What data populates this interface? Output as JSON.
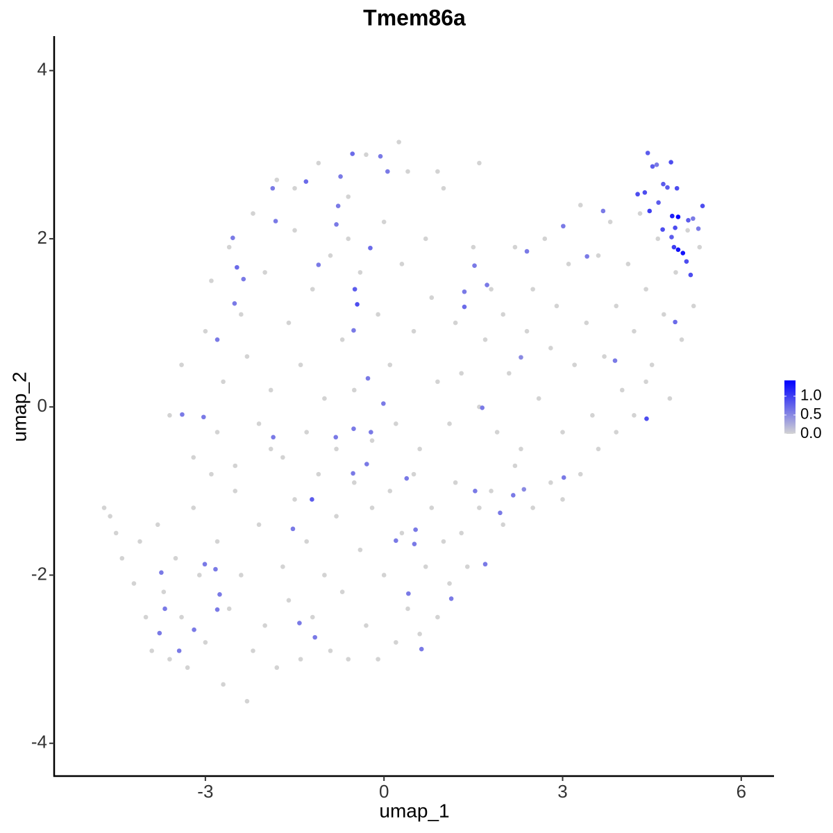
{
  "chart_data": {
    "type": "scatter",
    "title": "Tmem86a",
    "x_label": "umap_1",
    "y_label": "umap_2",
    "xlim": [
      -5.54,
      6.55
    ],
    "ylim": [
      -4.39,
      4.41
    ],
    "xticks": [
      -3,
      0,
      3,
      6
    ],
    "yticks": [
      -4,
      -2,
      0,
      2,
      4
    ],
    "x": [
      -4.7,
      -4.6,
      -4.5,
      -4.4,
      -4.2,
      -4.1,
      -4.0,
      -3.9,
      -3.8,
      -3.7,
      -3.6,
      -3.5,
      -3.4,
      -3.3,
      -3.2,
      -3.1,
      -3.0,
      -2.9,
      -2.8,
      -2.7,
      -2.6,
      -2.5,
      -2.4,
      -2.3,
      -2.2,
      -2.1,
      -2.0,
      -1.9,
      -1.8,
      -1.7,
      -1.6,
      -1.5,
      -1.4,
      -1.3,
      -1.2,
      -1.1,
      -1.0,
      -0.9,
      -0.8,
      -0.7,
      -0.6,
      -0.5,
      -0.4,
      -0.3,
      -0.2,
      -0.1,
      0.0,
      0.1,
      0.2,
      0.3,
      0.4,
      0.5,
      0.6,
      0.7,
      0.8,
      0.9,
      1.0,
      1.1,
      1.2,
      1.3,
      1.4,
      1.6,
      1.8,
      2.0,
      2.2,
      2.5,
      2.8,
      3.0,
      3.3,
      3.6,
      3.9,
      4.2,
      4.4,
      -3.6,
      -3.4,
      -3.2,
      -3.0,
      -2.9,
      -2.8,
      -2.7,
      -2.6,
      -2.5,
      -2.4,
      -2.3,
      -2.2,
      -2.1,
      -2.0,
      -1.9,
      -1.8,
      -1.7,
      -1.6,
      -1.5,
      -1.4,
      -1.3,
      -1.2,
      -1.1,
      -1.0,
      -0.9,
      -0.8,
      -0.7,
      -0.6,
      -0.5,
      -0.4,
      -0.3,
      -0.2,
      -0.1,
      0.0,
      0.1,
      0.2,
      0.3,
      0.4,
      0.5,
      0.6,
      0.7,
      0.8,
      0.9,
      1.0,
      1.1,
      1.2,
      1.3,
      1.5,
      1.6,
      1.7,
      1.8,
      1.9,
      2.0,
      2.1,
      2.2,
      2.3,
      2.4,
      2.5,
      2.6,
      2.7,
      2.8,
      2.9,
      3.0,
      3.1,
      3.2,
      3.3,
      3.4,
      3.5,
      3.6,
      3.7,
      3.8,
      3.9,
      4.0,
      4.1,
      4.2,
      4.3,
      4.4,
      4.5,
      4.6,
      4.7,
      4.8,
      4.9,
      5.0,
      5.1,
      5.2,
      5.3,
      0.25,
      -0.6,
      -1.5,
      1.6,
      0.9,
      -0.53,
      -0.06,
      0.06,
      -0.73,
      -1.31,
      -1.87,
      -1.82,
      -0.77,
      -0.8,
      -2.54,
      -2.47,
      -2.36,
      -1.1,
      -0.23,
      -0.49,
      -0.45,
      -0.51,
      -2.51,
      -2.8,
      -0.27,
      -0.01,
      -3.39,
      -3.03,
      -1.86,
      -0.51,
      -0.22,
      -0.81,
      -0.29,
      -0.52,
      0.38,
      -1.21,
      -1.53,
      0.2,
      0.53,
      0.51,
      -3.01,
      -2.83,
      -3.74,
      -3.68,
      -2.76,
      -2.8,
      -3.19,
      -3.77,
      -3.44,
      -1.42,
      -1.16,
      0.41,
      1.13,
      0.63,
      1.53,
      2.17,
      2.35,
      1.95,
      1.7,
      3.02,
      1.65,
      1.35,
      1.35,
      1.52,
      1.73,
      2.3,
      2.4,
      3.01,
      3.41,
      3.68,
      3.88,
      4.41,
      4.26,
      4.38,
      4.43,
      4.51,
      4.58,
      4.82,
      4.69,
      4.76,
      4.92,
      4.61,
      4.46,
      4.84,
      4.89,
      4.94,
      5.11,
      5.19,
      5.35,
      5.28,
      4.68,
      4.83,
      4.87,
      4.94,
      5.02,
      5.08,
      5.15,
      4.89
    ],
    "values": [
      -1.2,
      -1.3,
      -1.5,
      -1.8,
      -2.1,
      -1.6,
      -2.5,
      -2.9,
      -1.4,
      -2.2,
      -3.0,
      -1.8,
      -2.5,
      -3.1,
      -1.2,
      -2.0,
      -2.8,
      -0.8,
      -1.6,
      -3.3,
      -2.4,
      -1.0,
      -2.0,
      -3.5,
      -2.9,
      -1.4,
      -2.6,
      -0.5,
      -3.1,
      -1.9,
      -2.3,
      -1.1,
      -3.0,
      -1.6,
      -2.5,
      -0.8,
      -2.0,
      -2.9,
      -1.3,
      -2.2,
      -3.0,
      -0.9,
      -1.7,
      -2.6,
      -1.2,
      -3.0,
      -2.0,
      -1.0,
      -2.8,
      -1.5,
      -2.4,
      -0.8,
      -2.7,
      -1.9,
      -1.2,
      -2.5,
      -1.6,
      -2.1,
      -0.9,
      -1.5,
      -1.9,
      -1.2,
      -1.0,
      -1.4,
      -0.7,
      -1.2,
      -0.9,
      -1.1,
      -0.8,
      -0.5,
      -0.3,
      -0.1,
      0.3,
      -0.1,
      0.5,
      -0.6,
      0.9,
      1.5,
      -0.3,
      0.3,
      1.9,
      -0.7,
      1.1,
      0.6,
      2.3,
      -0.2,
      1.6,
      0.2,
      2.7,
      -0.6,
      1.0,
      2.1,
      0.5,
      -0.3,
      1.4,
      2.9,
      0.1,
      1.8,
      -0.5,
      0.8,
      2.5,
      0.2,
      1.6,
      3.0,
      -0.4,
      1.1,
      2.2,
      0.5,
      -0.2,
      1.7,
      2.8,
      0.9,
      -0.5,
      2.0,
      1.3,
      0.3,
      2.6,
      -0.2,
      1.0,
      0.4,
      1.9,
      0.0,
      0.8,
      1.4,
      -0.3,
      1.1,
      0.4,
      1.9,
      -0.5,
      0.9,
      1.4,
      0.1,
      2.0,
      0.7,
      1.2,
      -0.3,
      1.7,
      0.5,
      2.4,
      1.0,
      -0.1,
      1.8,
      0.6,
      2.2,
      1.2,
      0.2,
      1.7,
      0.9,
      2.3,
      1.4,
      0.5,
      2.0,
      1.1,
      0.1,
      1.6,
      0.8,
      2.1,
      1.2,
      1.9,
      3.15,
      2.0,
      2.6,
      2.9,
      2.8,
      3.01,
      2.98,
      2.8,
      2.74,
      2.68,
      2.6,
      2.21,
      2.39,
      2.17,
      2.01,
      1.66,
      1.52,
      1.69,
      1.89,
      1.4,
      1.22,
      0.91,
      1.23,
      0.8,
      0.34,
      0.04,
      -0.09,
      -0.12,
      -0.36,
      -0.26,
      -0.3,
      -0.36,
      -0.68,
      -0.79,
      -0.85,
      -1.1,
      -1.45,
      -1.59,
      -1.46,
      -1.63,
      -1.87,
      -1.93,
      -1.97,
      -2.4,
      -2.23,
      -2.41,
      -2.65,
      -2.69,
      -2.9,
      -2.57,
      -2.74,
      -2.22,
      -2.28,
      -2.88,
      -1.0,
      -1.05,
      -0.98,
      -1.26,
      -1.87,
      -0.84,
      -0.01,
      1.37,
      1.19,
      1.68,
      1.45,
      0.59,
      1.85,
      2.15,
      1.79,
      2.33,
      0.55,
      -0.14,
      2.53,
      2.55,
      3.02,
      2.86,
      2.88,
      2.91,
      2.65,
      2.61,
      2.6,
      2.43,
      2.33,
      2.27,
      2.13,
      2.26,
      2.22,
      2.24,
      2.39,
      2.12,
      2.11,
      2.02,
      1.9,
      1.87,
      1.83,
      1.73,
      1.57,
      1.01
    ],
    "expression": [
      0,
      0,
      0,
      0,
      0,
      0,
      0,
      0,
      0,
      0,
      0,
      0,
      0,
      0,
      0,
      0,
      0,
      0,
      0,
      0,
      0,
      0,
      0,
      0,
      0,
      0,
      0,
      0,
      0,
      0,
      0,
      0,
      0,
      0,
      0,
      0,
      0,
      0,
      0,
      0,
      0,
      0,
      0,
      0,
      0,
      0,
      0,
      0,
      0,
      0,
      0,
      0,
      0,
      0,
      0,
      0,
      0,
      0,
      0,
      0,
      0,
      0,
      0,
      0,
      0,
      0,
      0,
      0,
      0,
      0,
      0,
      0,
      0,
      0,
      0,
      0,
      0,
      0,
      0,
      0,
      0,
      0,
      0,
      0,
      0,
      0,
      0,
      0,
      0,
      0,
      0,
      0,
      0,
      0,
      0,
      0,
      0,
      0,
      0,
      0,
      0,
      0,
      0,
      0,
      0,
      0,
      0,
      0,
      0,
      0,
      0,
      0,
      0,
      0,
      0,
      0,
      0,
      0,
      0,
      0,
      0,
      0,
      0,
      0,
      0,
      0,
      0,
      0,
      0,
      0,
      0,
      0,
      0,
      0,
      0,
      0,
      0,
      0,
      0,
      0,
      0,
      0,
      0,
      0,
      0,
      0,
      0,
      0,
      0,
      0,
      0,
      0,
      0,
      0,
      0,
      0,
      0,
      0,
      0,
      0,
      0,
      0,
      0,
      0,
      0.7,
      0.6,
      0.6,
      0.6,
      0.7,
      0.6,
      0.6,
      0.6,
      0.6,
      0.6,
      0.7,
      0.6,
      0.6,
      0.7,
      0.8,
      0.9,
      0.6,
      0.6,
      0.6,
      0.6,
      0.6,
      0.6,
      0.6,
      0.6,
      0.6,
      0.6,
      0.6,
      0.6,
      0.6,
      0.6,
      0.8,
      0.6,
      0.6,
      0.6,
      0.6,
      0.6,
      0.6,
      0.6,
      0.6,
      0.6,
      0.6,
      0.6,
      0.6,
      0.6,
      0.6,
      0.6,
      0.6,
      0.6,
      0.6,
      0.6,
      0.6,
      0.5,
      0.6,
      0.6,
      0.6,
      0.6,
      0.6,
      0.7,
      0.6,
      0.6,
      0.5,
      0.6,
      0.6,
      0.6,
      0.6,
      0.6,
      0.9,
      0.9,
      0.9,
      0.8,
      0.8,
      0.6,
      0.9,
      0.8,
      0.8,
      0.9,
      0.8,
      1.0,
      1.2,
      0.9,
      1.4,
      0.8,
      0.6,
      0.9,
      0.6,
      0.9,
      0.8,
      1.0,
      1.3,
      1.3,
      0.9,
      0.9,
      0.7
    ],
    "colorbar": {
      "lim": [
        0,
        1.42
      ],
      "low_color": "#d3d3d3",
      "high_color": "#0000ff",
      "ticks": [
        {
          "value": 0,
          "label": "0.0"
        },
        0.5,
        {
          "value": 1,
          "label": "1.0"
        }
      ]
    }
  }
}
